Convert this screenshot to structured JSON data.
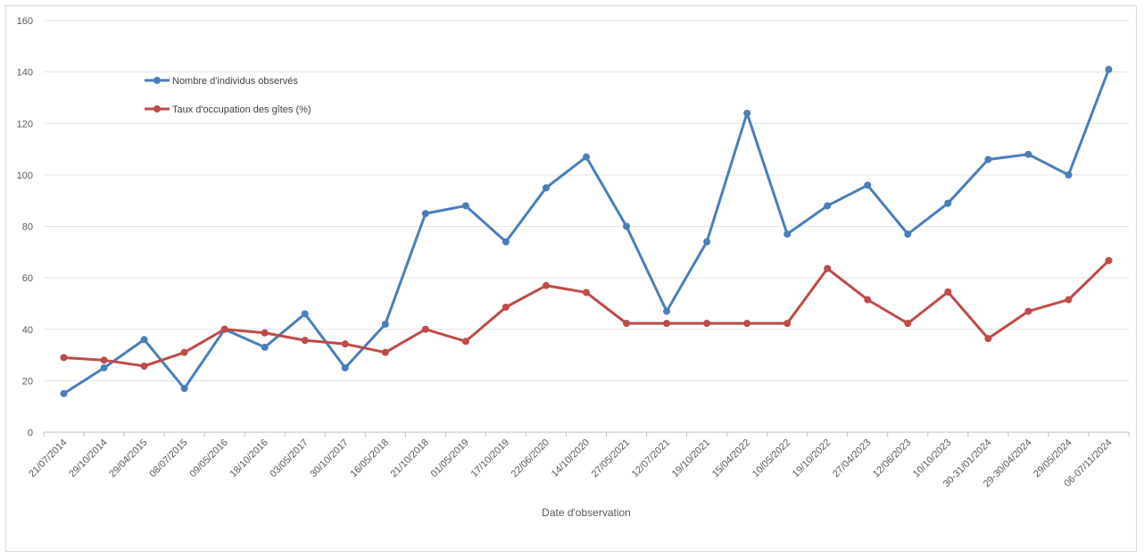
{
  "chart_data": {
    "type": "line",
    "title": "",
    "xlabel": "Date d'observation",
    "ylabel": "",
    "ylim": [
      0,
      160
    ],
    "yticks": [
      0,
      20,
      40,
      60,
      80,
      100,
      120,
      140,
      160
    ],
    "grid": true,
    "legend_position": "top-left",
    "categories": [
      "21/07/2014",
      "29/10/2014",
      "29/04/2015",
      "08/07/2015",
      "09/05/2016",
      "18/10/2016",
      "03/05/2017",
      "30/10/2017",
      "16/05/2018",
      "21/10/2018",
      "01/05/2019",
      "17/10/2019",
      "22/06/2020",
      "14/10/2020",
      "27/05/2021",
      "12/07/2021",
      "19/10/2021",
      "15/04/2022",
      "10/05/2022",
      "19/10/2022",
      "27/04/2023",
      "12/06/2023",
      "10/10/2023",
      "30-31/01/2024",
      "29-30/04/2024",
      "29/05/2024",
      "06-07/11/2024"
    ],
    "series": [
      {
        "name": "Nombre d'individus observés",
        "color": "#4a7ebb",
        "values": [
          15,
          25,
          36,
          17,
          40,
          33,
          46,
          25,
          42,
          85,
          88,
          74,
          95,
          107,
          80,
          47,
          74,
          124,
          77,
          88,
          96,
          77,
          89,
          106,
          108,
          100,
          141
        ]
      },
      {
        "name": "Taux d'occupation des gîtes (%)",
        "color": "#be4b48",
        "values": [
          29,
          28,
          25.7,
          31,
          40,
          38.6,
          35.7,
          34.3,
          31,
          40,
          35.3,
          48.6,
          57,
          54.3,
          42.3,
          42.3,
          42.3,
          42.3,
          42.3,
          63.6,
          51.5,
          42.3,
          54.5,
          36.4,
          47,
          51.5,
          66.7
        ]
      }
    ]
  }
}
